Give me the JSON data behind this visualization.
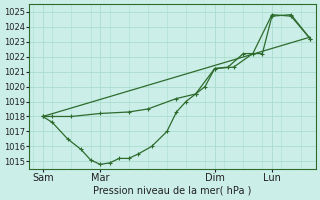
{
  "title": "Pression niveau de la mer( hPa )",
  "bg_color": "#cceee8",
  "line_color": "#2d6b2d",
  "grid_color": "#aaddcc",
  "ylim": [
    1014.5,
    1025.5
  ],
  "yticks": [
    1015,
    1016,
    1017,
    1018,
    1019,
    1020,
    1021,
    1022,
    1023,
    1024,
    1025
  ],
  "xtick_labels": [
    "Sam",
    "Mar",
    "Dim",
    "Lun"
  ],
  "xtick_positions": [
    0.5,
    3.5,
    9.5,
    12.5
  ],
  "total_x": 15,
  "xlim": [
    -0.2,
    14.8
  ],
  "trend_x": [
    0.5,
    14.5
  ],
  "trend_y": [
    1018.0,
    1023.3
  ],
  "line_upper_x": [
    0.5,
    1.0,
    2.0,
    3.5,
    5.0,
    6.0,
    7.5,
    8.5,
    9.5,
    10.2,
    11.0,
    12.0,
    12.5,
    13.5,
    14.5
  ],
  "line_upper_y": [
    1018.0,
    1018.0,
    1018.0,
    1018.2,
    1018.3,
    1018.5,
    1019.2,
    1019.5,
    1021.2,
    1021.3,
    1022.2,
    1022.2,
    1024.7,
    1024.8,
    1023.2
  ],
  "line_lower_x": [
    0.5,
    1.0,
    1.8,
    2.5,
    3.0,
    3.5,
    4.0,
    4.5,
    5.0,
    5.5,
    6.2,
    7.0,
    7.5,
    8.0,
    8.5,
    9.0,
    9.5,
    10.5,
    11.5,
    12.5,
    13.5,
    14.5
  ],
  "line_lower_y": [
    1018.0,
    1017.6,
    1016.5,
    1015.8,
    1015.1,
    1014.8,
    1014.9,
    1015.2,
    1015.2,
    1015.5,
    1016.0,
    1017.0,
    1018.3,
    1019.0,
    1019.5,
    1020.0,
    1021.2,
    1021.3,
    1022.2,
    1024.8,
    1024.7,
    1023.2
  ]
}
